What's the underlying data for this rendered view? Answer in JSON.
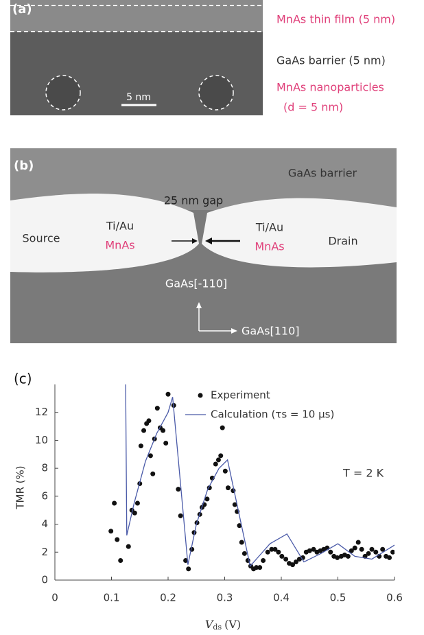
{
  "panel_a": {
    "label": "(a)",
    "scale_bar": "5 nm",
    "annotations": [
      "MnAs thin film (5 nm)",
      "GaAs barrier (5 nm)",
      "MnAs nanoparticles",
      "(d = 5 nm)"
    ]
  },
  "panel_b": {
    "label": "(b)",
    "barrier": "GaAs barrier",
    "gap": "25 nm gap",
    "source": "Source",
    "drain": "Drain",
    "left_metal": "Ti/Au",
    "left_magnet": "MnAs",
    "right_metal": "Ti/Au",
    "right_magnet": "MnAs",
    "axis_vertical": "GaAs[-110]",
    "axis_horizontal": "GaAs[110]"
  },
  "chart_data": {
    "type": "scatter",
    "panel_label": "(c)",
    "x_label": {
      "symbol": "V",
      "subscript": "ds",
      "unit": "(V)"
    },
    "y_label": "TMR (%)",
    "annotation": "T = 2 K",
    "xlim": [
      0,
      0.6
    ],
    "xticks": [
      0,
      0.1,
      0.2,
      0.3,
      0.4,
      0.5,
      0.6
    ],
    "ylim": [
      0,
      14
    ],
    "yticks": [
      0,
      2,
      4,
      6,
      8,
      10,
      12
    ],
    "series": [
      {
        "name": "Experiment",
        "type": "scatter",
        "color": "#111111",
        "x": [
          0.099,
          0.105,
          0.11,
          0.116,
          0.13,
          0.136,
          0.141,
          0.146,
          0.15,
          0.152,
          0.157,
          0.162,
          0.166,
          0.169,
          0.173,
          0.176,
          0.181,
          0.186,
          0.191,
          0.196,
          0.2,
          0.21,
          0.218,
          0.222,
          0.231,
          0.236,
          0.242,
          0.246,
          0.251,
          0.256,
          0.26,
          0.264,
          0.269,
          0.273,
          0.278,
          0.284,
          0.289,
          0.293,
          0.296,
          0.301,
          0.306,
          0.315,
          0.318,
          0.322,
          0.326,
          0.33,
          0.335,
          0.341,
          0.346,
          0.351,
          0.356,
          0.362,
          0.368,
          0.376,
          0.383,
          0.389,
          0.395,
          0.401,
          0.408,
          0.414,
          0.42,
          0.426,
          0.432,
          0.438,
          0.444,
          0.45,
          0.457,
          0.463,
          0.469,
          0.475,
          0.481,
          0.487,
          0.493,
          0.499,
          0.506,
          0.512,
          0.518,
          0.524,
          0.53,
          0.536,
          0.542,
          0.548,
          0.554,
          0.56,
          0.567,
          0.573,
          0.579,
          0.585,
          0.591,
          0.597
        ],
        "values": [
          3.5,
          5.5,
          2.9,
          1.4,
          2.4,
          5.0,
          4.8,
          5.5,
          6.9,
          9.6,
          10.7,
          11.2,
          11.4,
          8.9,
          7.6,
          10.1,
          12.3,
          10.9,
          10.7,
          9.8,
          13.3,
          12.5,
          6.5,
          4.6,
          1.4,
          0.8,
          2.2,
          3.4,
          4.1,
          4.7,
          5.2,
          5.4,
          5.8,
          6.6,
          7.3,
          8.3,
          8.6,
          8.9,
          10.9,
          7.8,
          6.6,
          6.4,
          5.4,
          4.9,
          3.9,
          2.7,
          1.9,
          1.4,
          1.0,
          0.8,
          0.9,
          0.9,
          1.4,
          2.0,
          2.2,
          2.2,
          2.0,
          1.7,
          1.5,
          1.2,
          1.1,
          1.3,
          1.5,
          1.6,
          2.0,
          2.1,
          2.2,
          2.0,
          2.1,
          2.2,
          2.3,
          2.0,
          1.7,
          1.6,
          1.7,
          1.8,
          1.7,
          2.1,
          2.3,
          2.7,
          2.2,
          1.7,
          1.9,
          2.2,
          2.0,
          1.7,
          2.2,
          1.7,
          1.6,
          2.0
        ]
      },
      {
        "name": "Calculation (τs = 10 μs)",
        "type": "line",
        "color": "#4a5aa8",
        "x": [
          0.125,
          0.127,
          0.14,
          0.16,
          0.18,
          0.2,
          0.208,
          0.235,
          0.25,
          0.27,
          0.29,
          0.305,
          0.345,
          0.38,
          0.41,
          0.44,
          0.47,
          0.5,
          0.53,
          0.56,
          0.6
        ],
        "values": [
          14,
          3.2,
          5.5,
          8.5,
          10.5,
          12.0,
          13.1,
          1.1,
          4.0,
          6.5,
          8.0,
          8.6,
          1.0,
          2.6,
          3.3,
          1.3,
          1.9,
          2.6,
          1.7,
          1.5,
          2.5
        ]
      }
    ]
  }
}
